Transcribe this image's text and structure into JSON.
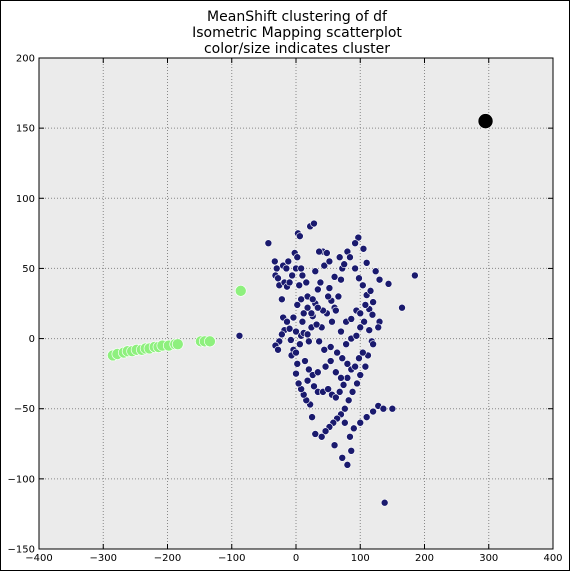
{
  "chart_data": {
    "type": "scatter",
    "title_lines": [
      "MeanShift clustering of df",
      "Isometric Mapping scatterplot",
      "color/size indicates cluster"
    ],
    "xlim": [
      -400,
      400
    ],
    "ylim": [
      -150,
      200
    ],
    "xticks": [
      -400,
      -300,
      -200,
      -100,
      0,
      100,
      200,
      300,
      400
    ],
    "yticks": [
      -150,
      -100,
      -50,
      0,
      50,
      100,
      150,
      200
    ],
    "grid": true,
    "background": "#ebebeb",
    "series": [
      {
        "color": "#1a1a6e",
        "marker_size": 6,
        "points": [
          [
            -43,
            68
          ],
          [
            -33,
            55
          ],
          [
            -30,
            50
          ],
          [
            -32,
            45
          ],
          [
            -28,
            43
          ],
          [
            -26,
            38
          ],
          [
            -20,
            52
          ],
          [
            -15,
            50
          ],
          [
            -18,
            40
          ],
          [
            -14,
            37
          ],
          [
            -6,
            45
          ],
          [
            -10,
            40
          ],
          [
            3,
            75
          ],
          [
            6,
            73
          ],
          [
            -2,
            61
          ],
          [
            0,
            50
          ],
          [
            5,
            38
          ],
          [
            8,
            28
          ],
          [
            2,
            24
          ],
          [
            10,
            45
          ],
          [
            -22,
            28
          ],
          [
            -20,
            15
          ],
          [
            -14,
            12
          ],
          [
            -18,
            6
          ],
          [
            -22,
            3
          ],
          [
            -26,
            -2
          ],
          [
            -32,
            -5
          ],
          [
            -28,
            -8
          ],
          [
            -10,
            7
          ],
          [
            -8,
            -1
          ],
          [
            -4,
            -8
          ],
          [
            -7,
            -12
          ],
          [
            0,
            -10
          ],
          [
            2,
            -18
          ],
          [
            8,
            2
          ],
          [
            12,
            4
          ],
          [
            18,
            3
          ],
          [
            20,
            -2
          ],
          [
            24,
            8
          ],
          [
            26,
            16
          ],
          [
            30,
            25
          ],
          [
            34,
            35
          ],
          [
            38,
            40
          ],
          [
            42,
            62
          ],
          [
            48,
            61
          ],
          [
            52,
            36
          ],
          [
            55,
            27
          ],
          [
            60,
            22
          ],
          [
            66,
            30
          ],
          [
            70,
            42
          ],
          [
            72,
            50
          ],
          [
            75,
            53
          ],
          [
            80,
            62
          ],
          [
            84,
            58
          ],
          [
            92,
            50
          ],
          [
            98,
            43
          ],
          [
            104,
            38
          ],
          [
            110,
            31
          ],
          [
            114,
            21
          ],
          [
            119,
            17
          ],
          [
            110,
            54
          ],
          [
            124,
            48
          ],
          [
            130,
            42
          ],
          [
            144,
            39
          ],
          [
            97,
            72
          ],
          [
            105,
            64
          ],
          [
            92,
            68
          ],
          [
            120,
            26
          ],
          [
            130,
            12
          ],
          [
            128,
            8
          ],
          [
            118,
            -2
          ],
          [
            112,
            -12
          ],
          [
            108,
            -20
          ],
          [
            100,
            -26
          ],
          [
            95,
            -32
          ],
          [
            88,
            -38
          ],
          [
            82,
            -44
          ],
          [
            76,
            -50
          ],
          [
            70,
            -54
          ],
          [
            64,
            -57
          ],
          [
            58,
            -60
          ],
          [
            52,
            -63
          ],
          [
            46,
            -66
          ],
          [
            40,
            -70
          ],
          [
            30,
            -68
          ],
          [
            25,
            -56
          ],
          [
            22,
            -47
          ],
          [
            16,
            -44
          ],
          [
            12,
            -40
          ],
          [
            8,
            -36
          ],
          [
            4,
            -32
          ],
          [
            0,
            -25
          ],
          [
            18,
            -30
          ],
          [
            28,
            -34
          ],
          [
            34,
            -38
          ],
          [
            42,
            -38
          ],
          [
            50,
            -36
          ],
          [
            56,
            -40
          ],
          [
            62,
            -42
          ],
          [
            68,
            -38
          ],
          [
            74,
            -33
          ],
          [
            80,
            -28
          ],
          [
            86,
            -22
          ],
          [
            92,
            -20
          ],
          [
            98,
            -14
          ],
          [
            104,
            -10
          ],
          [
            36,
            -2
          ],
          [
            44,
            -8
          ],
          [
            54,
            -6
          ],
          [
            64,
            -10
          ],
          [
            72,
            -14
          ],
          [
            80,
            -18
          ],
          [
            62,
            20
          ],
          [
            56,
            12
          ],
          [
            48,
            18
          ],
          [
            40,
            8
          ],
          [
            32,
            10
          ],
          [
            24,
            18
          ],
          [
            18,
            22
          ],
          [
            12,
            18
          ],
          [
            70,
            5
          ],
          [
            78,
            12
          ],
          [
            86,
            14
          ],
          [
            94,
            20
          ],
          [
            100,
            18
          ],
          [
            106,
            12
          ],
          [
            114,
            6
          ],
          [
            120,
            -4
          ],
          [
            76,
            -60
          ],
          [
            84,
            -70
          ],
          [
            90,
            -64
          ],
          [
            100,
            -60
          ],
          [
            110,
            -56
          ],
          [
            120,
            -52
          ],
          [
            128,
            -48
          ],
          [
            136,
            -50
          ],
          [
            86,
            -80
          ],
          [
            80,
            -90
          ],
          [
            72,
            -85
          ],
          [
            60,
            -76
          ],
          [
            150,
            -50
          ],
          [
            165,
            22
          ],
          [
            185,
            45
          ],
          [
            138,
            -117
          ],
          [
            -88,
            2
          ],
          [
            22,
            80
          ],
          [
            28,
            82
          ],
          [
            36,
            62
          ],
          [
            44,
            52
          ],
          [
            52,
            55
          ],
          [
            30,
            48
          ],
          [
            18,
            30
          ],
          [
            10,
            12
          ],
          [
            0,
            5
          ],
          [
            -4,
            15
          ],
          [
            6,
            -4
          ],
          [
            14,
            -16
          ],
          [
            20,
            -22
          ],
          [
            26,
            -26
          ],
          [
            34,
            -24
          ],
          [
            46,
            -20
          ],
          [
            54,
            -16
          ],
          [
            62,
            -24
          ],
          [
            70,
            -28
          ],
          [
            78,
            -4
          ],
          [
            86,
            0
          ],
          [
            94,
            2
          ],
          [
            100,
            8
          ],
          [
            108,
            24
          ],
          [
            116,
            34
          ],
          [
            68,
            58
          ],
          [
            60,
            44
          ],
          [
            50,
            30
          ],
          [
            42,
            20
          ],
          [
            34,
            22
          ],
          [
            26,
            28
          ],
          [
            16,
            40
          ],
          [
            8,
            50
          ],
          [
            2,
            58
          ],
          [
            -12,
            55
          ]
        ]
      },
      {
        "color": "#8ef07e",
        "marker_size": 10,
        "points": [
          [
            -285,
            -12
          ],
          [
            -278,
            -11
          ],
          [
            -268,
            -10
          ],
          [
            -262,
            -9
          ],
          [
            -255,
            -9
          ],
          [
            -248,
            -8
          ],
          [
            -240,
            -8
          ],
          [
            -234,
            -7
          ],
          [
            -228,
            -7
          ],
          [
            -220,
            -6
          ],
          [
            -214,
            -6
          ],
          [
            -208,
            -5
          ],
          [
            -198,
            -5
          ],
          [
            -188,
            -4
          ],
          [
            -184,
            -4
          ],
          [
            -148,
            -2
          ],
          [
            -142,
            -2
          ],
          [
            -134,
            -2
          ],
          [
            -86,
            34
          ]
        ]
      },
      {
        "color": "#000000",
        "marker_size": 14,
        "points": [
          [
            295,
            155
          ]
        ]
      }
    ]
  }
}
